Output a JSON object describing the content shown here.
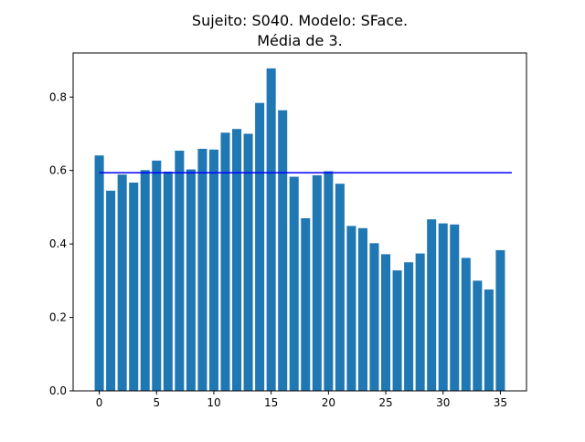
{
  "chart_data": {
    "type": "bar",
    "title_line1": "Sujeito: S040. Modelo: SFace.",
    "title_line2": "Média de 3.",
    "xlabel": "",
    "ylabel": "",
    "x": [
      0,
      1,
      2,
      3,
      4,
      5,
      6,
      7,
      8,
      9,
      10,
      11,
      12,
      13,
      14,
      15,
      16,
      17,
      18,
      19,
      20,
      21,
      22,
      23,
      24,
      25,
      26,
      27,
      28,
      29,
      30,
      31,
      32,
      33,
      34,
      35
    ],
    "values": [
      0.641,
      0.545,
      0.589,
      0.567,
      0.601,
      0.627,
      0.597,
      0.654,
      0.603,
      0.659,
      0.657,
      0.703,
      0.713,
      0.7,
      0.784,
      0.878,
      0.764,
      0.583,
      0.47,
      0.587,
      0.598,
      0.564,
      0.449,
      0.443,
      0.402,
      0.372,
      0.328,
      0.35,
      0.374,
      0.467,
      0.456,
      0.453,
      0.362,
      0.3,
      0.276,
      0.383
    ],
    "bar_color": "#1f77b4",
    "mean_line": {
      "value": 0.594,
      "x_start": 0,
      "x_end": 36,
      "color": "#0000ff"
    },
    "xlim": [
      -2.28,
      37.28
    ],
    "ylim": [
      0,
      0.92
    ],
    "xticks": [
      0,
      5,
      10,
      15,
      20,
      25,
      30,
      35
    ],
    "xtick_labels": [
      "0",
      "5",
      "10",
      "15",
      "20",
      "25",
      "30",
      "35"
    ],
    "yticks": [
      0.0,
      0.2,
      0.4,
      0.6,
      0.8
    ],
    "ytick_labels": [
      "0.0",
      "0.2",
      "0.4",
      "0.6",
      "0.8"
    ]
  }
}
